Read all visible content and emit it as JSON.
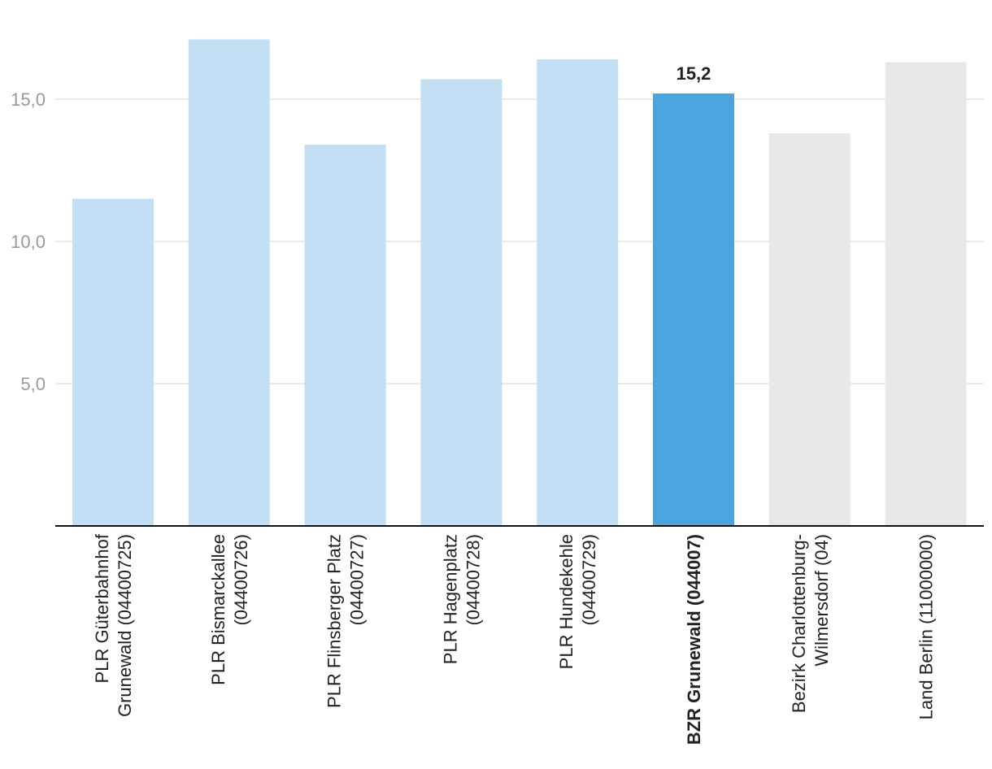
{
  "chart_data": {
    "type": "bar",
    "categories": [
      [
        "PLR Güterbahnhof",
        "Grunewald (04400725)"
      ],
      [
        "PLR Bismarckallee",
        "(04400726)"
      ],
      [
        "PLR Flinsberger Platz",
        "(04400727)"
      ],
      [
        "PLR Hagenplatz",
        "(04400728)"
      ],
      [
        "PLR Hundekehle",
        "(04400729)"
      ],
      [
        "BZR Grunewald (044007)"
      ],
      [
        "Bezirk Charlottenburg-",
        "Wilmersdorf (04)"
      ],
      [
        "Land Berlin (11000000)"
      ]
    ],
    "values": [
      11.5,
      17.1,
      13.4,
      15.7,
      16.4,
      15.2,
      13.8,
      16.3
    ],
    "bar_colors": [
      "#c2dff3",
      "#c2dff3",
      "#c2dff3",
      "#c2dff3",
      "#c2dff3",
      "#4ba4de",
      "#e8e8e8",
      "#e8e8e8"
    ],
    "highlight_index": 5,
    "data_labels": [
      "",
      "",
      "",
      "",
      "",
      "15,2",
      "",
      ""
    ],
    "yticks": [
      "5,0",
      "10,0",
      "15,0"
    ],
    "ytick_values": [
      5,
      10,
      15
    ],
    "ylim": [
      0,
      18
    ],
    "grid": true,
    "title": "",
    "xlabel": "",
    "ylabel": ""
  }
}
